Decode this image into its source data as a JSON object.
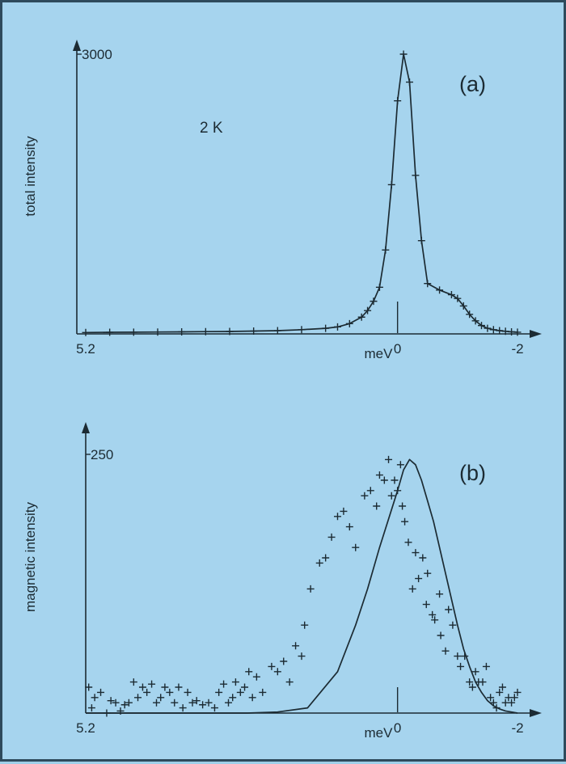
{
  "colors": {
    "background": "#a6d4ee",
    "ink": "#1c2b33"
  },
  "chart_data": [
    {
      "type": "line",
      "panel_label": "(a)",
      "annotation": "2 K",
      "ylabel": "total intensity",
      "xlabel": "meV",
      "x_reversed": true,
      "xlim": [
        5.2,
        -2
      ],
      "ylim": [
        0,
        3000
      ],
      "x_ticks": [
        "5.2",
        "0",
        "-2"
      ],
      "x_tick_values": [
        5.2,
        0,
        -2
      ],
      "y_ticks": [
        "3000"
      ],
      "y_tick_values": [
        3000
      ],
      "series": [
        {
          "style": "line with + markers",
          "x": [
            5.2,
            4.8,
            4.4,
            4.0,
            3.6,
            3.2,
            2.8,
            2.4,
            2.0,
            1.6,
            1.2,
            1.0,
            0.8,
            0.6,
            0.5,
            0.4,
            0.3,
            0.2,
            0.1,
            0.0,
            -0.1,
            -0.2,
            -0.3,
            -0.4,
            -0.5,
            -0.7,
            -0.9,
            -1.0,
            -1.1,
            -1.2,
            -1.3,
            -1.4,
            -1.5,
            -1.6,
            -1.7,
            -1.8,
            -1.9,
            -2.0
          ],
          "y": [
            15,
            17,
            18,
            20,
            22,
            24,
            26,
            30,
            35,
            45,
            60,
            75,
            110,
            180,
            250,
            350,
            500,
            900,
            1600,
            2500,
            3000,
            2700,
            1700,
            1000,
            540,
            470,
            420,
            380,
            300,
            210,
            140,
            90,
            60,
            45,
            35,
            28,
            22,
            18
          ]
        }
      ]
    },
    {
      "type": "scatter",
      "panel_label": "(b)",
      "ylabel": "magnetic intensity",
      "xlabel": "meV",
      "x_reversed": true,
      "xlim": [
        5.2,
        -2
      ],
      "ylim": [
        0,
        250
      ],
      "x_ticks": [
        "5.2",
        "0",
        "-2"
      ],
      "x_tick_values": [
        5.2,
        0,
        -2
      ],
      "y_ticks": [
        "250"
      ],
      "y_tick_values": [
        250
      ],
      "series": [
        {
          "style": "+ markers",
          "x": [
            5.15,
            5.1,
            5.05,
            4.95,
            4.85,
            4.78,
            4.7,
            4.62,
            4.55,
            4.48,
            4.4,
            4.33,
            4.25,
            4.18,
            4.1,
            4.02,
            3.95,
            3.88,
            3.8,
            3.72,
            3.65,
            3.58,
            3.5,
            3.42,
            3.35,
            3.25,
            3.15,
            3.05,
            2.98,
            2.9,
            2.82,
            2.75,
            2.7,
            2.62,
            2.55,
            2.48,
            2.42,
            2.35,
            2.25,
            2.1,
            2.0,
            1.9,
            1.8,
            1.7,
            1.6,
            1.55,
            1.45,
            1.3,
            1.2,
            1.1,
            1.0,
            0.9,
            0.8,
            0.7,
            0.55,
            0.45,
            0.35,
            0.3,
            0.22,
            0.15,
            0.1,
            0.05,
            0.0,
            -0.05,
            -0.08,
            -0.12,
            -0.18,
            -0.25,
            -0.3,
            -0.35,
            -0.42,
            -0.48,
            -0.5,
            -0.58,
            -0.62,
            -0.7,
            -0.72,
            -0.8,
            -0.85,
            -0.92,
            -1.0,
            -1.05,
            -1.12,
            -1.2,
            -1.25,
            -1.3,
            -1.35,
            -1.42,
            -1.48,
            -1.55,
            -1.6,
            -1.65,
            -1.7,
            -1.75,
            -1.8,
            -1.85,
            -1.9,
            -1.95,
            -2.0
          ],
          "y": [
            25,
            5,
            15,
            20,
            0,
            12,
            10,
            2,
            8,
            10,
            30,
            15,
            25,
            20,
            28,
            10,
            15,
            25,
            20,
            10,
            25,
            5,
            20,
            10,
            12,
            8,
            10,
            5,
            20,
            28,
            10,
            15,
            30,
            20,
            25,
            40,
            15,
            35,
            20,
            45,
            40,
            50,
            30,
            65,
            55,
            85,
            120,
            145,
            150,
            170,
            190,
            195,
            180,
            160,
            210,
            215,
            200,
            230,
            225,
            245,
            210,
            225,
            215,
            240,
            200,
            185,
            165,
            120,
            155,
            130,
            150,
            105,
            135,
            95,
            90,
            115,
            75,
            60,
            100,
            85,
            55,
            45,
            55,
            30,
            25,
            40,
            30,
            30,
            45,
            15,
            10,
            5,
            20,
            25,
            10,
            15,
            10,
            15,
            20
          ]
        },
        {
          "style": "line",
          "x": [
            5.2,
            4.5,
            4.0,
            3.5,
            3.0,
            2.5,
            2.0,
            1.5,
            1.0,
            0.7,
            0.5,
            0.3,
            0.0,
            -0.1,
            -0.2,
            -0.3,
            -0.4,
            -0.5,
            -0.6,
            -0.7,
            -0.8,
            -0.9,
            -1.0,
            -1.1,
            -1.2,
            -1.3,
            -1.4,
            -1.5,
            -1.6,
            -1.7,
            -1.8,
            -1.9,
            -2.0
          ],
          "y": [
            0,
            0,
            0,
            0,
            0,
            0,
            1,
            5,
            40,
            85,
            120,
            160,
            215,
            235,
            245,
            240,
            225,
            205,
            185,
            160,
            135,
            110,
            85,
            62,
            45,
            30,
            20,
            12,
            7,
            4,
            2,
            1,
            0
          ]
        }
      ]
    }
  ]
}
